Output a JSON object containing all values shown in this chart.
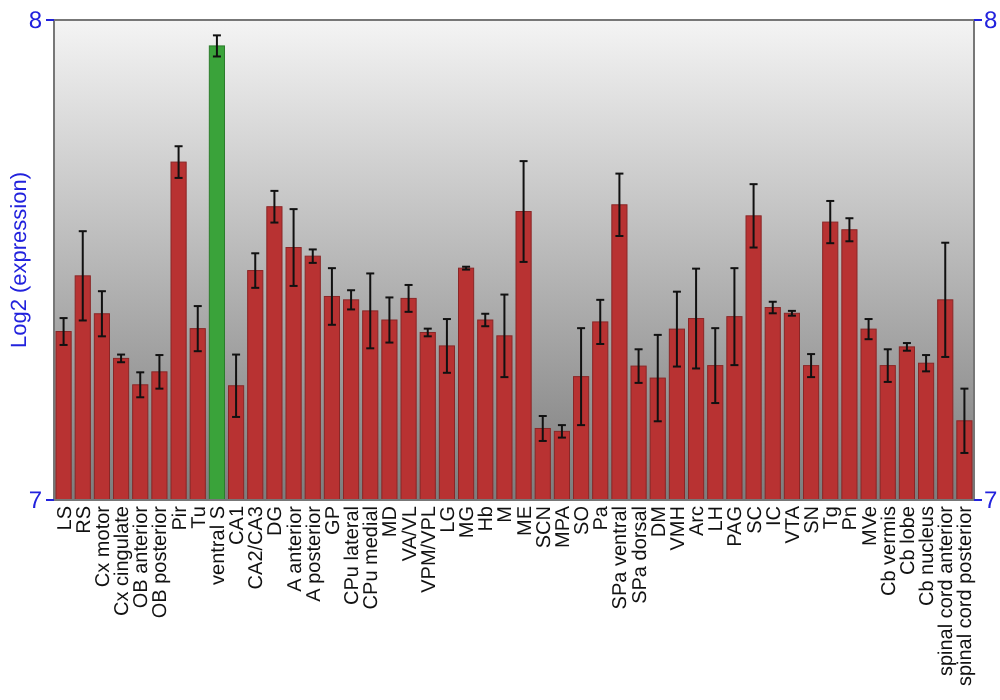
{
  "chart_data": {
    "type": "bar",
    "ylabel": "Log2 (expression)",
    "categories": [
      "LS",
      "RS",
      "Cx motor",
      "Cx cingulate",
      "OB anterior",
      "OB posterior",
      "Pir",
      "Tu",
      "ventral S",
      "CA1",
      "CA2/CA3",
      "DG",
      "A anterior",
      "A posterior",
      "GP",
      "CPu lateral",
      "CPu medial",
      "MD",
      "VA/VL",
      "VPM/VPL",
      "LG",
      "MG",
      "Hb",
      "M",
      "ME",
      "SCN",
      "MPA",
      "SO",
      "Pa",
      "SPa ventral",
      "SPa dorsal",
      "DM",
      "VMH",
      "Arc",
      "LH",
      "PAG",
      "SC",
      "IC",
      "VTA",
      "SN",
      "Tg",
      "Pn",
      "MVe",
      "Cb vermis",
      "Cb lobe",
      "Cb nucleus",
      "spinal cord anterior",
      "spinal cord posterior"
    ],
    "values": [
      7.351,
      7.467,
      7.388,
      7.295,
      7.24,
      7.267,
      7.704,
      7.357,
      7.946,
      7.238,
      7.478,
      7.611,
      7.526,
      7.508,
      7.424,
      7.417,
      7.394,
      7.375,
      7.42,
      7.349,
      7.321,
      7.483,
      7.375,
      7.342,
      7.601,
      7.149,
      7.143,
      7.257,
      7.371,
      7.615,
      7.279,
      7.254,
      7.356,
      7.378,
      7.28,
      7.382,
      7.592,
      7.401,
      7.389,
      7.28,
      7.579,
      7.563,
      7.356,
      7.28,
      7.319,
      7.285,
      7.417,
      7.165
    ],
    "errors": [
      0.028,
      0.093,
      0.047,
      0.008,
      0.026,
      0.035,
      0.033,
      0.047,
      0.022,
      0.065,
      0.036,
      0.033,
      0.08,
      0.014,
      0.059,
      0.02,
      0.078,
      0.047,
      0.028,
      0.008,
      0.056,
      0.003,
      0.013,
      0.086,
      0.105,
      0.026,
      0.013,
      0.101,
      0.046,
      0.065,
      0.035,
      0.09,
      0.078,
      0.104,
      0.078,
      0.101,
      0.066,
      0.012,
      0.005,
      0.024,
      0.044,
      0.024,
      0.021,
      0.034,
      0.008,
      0.017,
      0.119,
      0.067
    ],
    "colors": [
      "#b83232",
      "#b83232",
      "#b83232",
      "#b83232",
      "#b83232",
      "#b83232",
      "#b83232",
      "#b83232",
      "#3aa33a",
      "#b83232",
      "#b83232",
      "#b83232",
      "#b83232",
      "#b83232",
      "#b83232",
      "#b83232",
      "#b83232",
      "#b83232",
      "#b83232",
      "#b83232",
      "#b83232",
      "#b83232",
      "#b83232",
      "#b83232",
      "#b83232",
      "#b83232",
      "#b83232",
      "#b83232",
      "#b83232",
      "#b83232",
      "#b83232",
      "#b83232",
      "#b83232",
      "#b83232",
      "#b83232",
      "#b83232",
      "#b83232",
      "#b83232",
      "#b83232",
      "#b83232",
      "#b83232",
      "#b83232",
      "#b83232",
      "#b83232",
      "#b83232",
      "#b83232",
      "#b83232",
      "#b83232"
    ],
    "ylim": [
      7,
      8
    ],
    "yticks": [
      7,
      8
    ],
    "y2lim": [
      7,
      8
    ],
    "y2ticks": [
      7,
      8
    ]
  }
}
